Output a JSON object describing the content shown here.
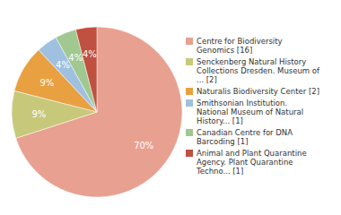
{
  "chart_data": {
    "type": "pie",
    "categories": [
      "Centre for Biodiversity\nGenomics [16]",
      "Senckenberg Natural History\nCollections Dresden. Museum of\n... [2]",
      "Naturalis Biodiversity Center [2]",
      "Smithsonian Institution.\nNational Museum of Natural\nHistory... [1]",
      "Canadian Centre for DNA\nBarcoding [1]",
      "Animal and Plant Quarantine\nAgency. Plant Quarantine\nTechno... [1]"
    ],
    "values": [
      70,
      9,
      9,
      4,
      4,
      4
    ],
    "value_labels": [
      "70%",
      "9%",
      "9%",
      "4%",
      "4%",
      "4%"
    ],
    "data_labels": true,
    "colors": [
      "#e8a090",
      "#c8c87a",
      "#e8a040",
      "#a0c0e0",
      "#a0c890",
      "#c05040"
    ],
    "legend": "right"
  }
}
